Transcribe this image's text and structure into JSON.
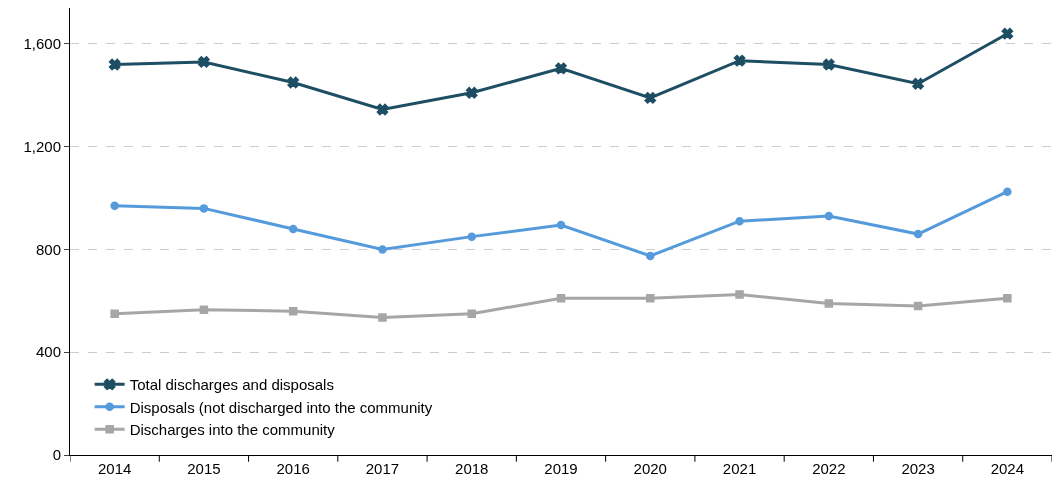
{
  "chart_data": {
    "type": "line",
    "categories": [
      "2014",
      "2015",
      "2016",
      "2017",
      "2018",
      "2019",
      "2020",
      "2021",
      "2022",
      "2023",
      "2024"
    ],
    "series": [
      {
        "name": "Total discharges and disposals",
        "color": "#1d4e63",
        "marker": "cross",
        "values": [
          1520,
          1530,
          1450,
          1345,
          1410,
          1505,
          1390,
          1535,
          1520,
          1445,
          1640
        ]
      },
      {
        "name": "Disposals (not discharged into the community",
        "color": "#559bdc",
        "marker": "circle",
        "values": [
          970,
          960,
          880,
          800,
          850,
          895,
          775,
          910,
          930,
          860,
          1025
        ]
      },
      {
        "name": "Discharges into the community",
        "color": "#a6a6a6",
        "marker": "square",
        "values": [
          550,
          565,
          560,
          535,
          550,
          610,
          610,
          625,
          590,
          580,
          610
        ]
      }
    ],
    "ylim": [
      0,
      1740
    ],
    "yticks": [
      0,
      400,
      800,
      {
        "value": 1200,
        "label": "1,200"
      },
      {
        "value": 1600,
        "label": "1,600"
      }
    ],
    "grid": "y",
    "legend": "bottom left",
    "line_style": "solid"
  }
}
